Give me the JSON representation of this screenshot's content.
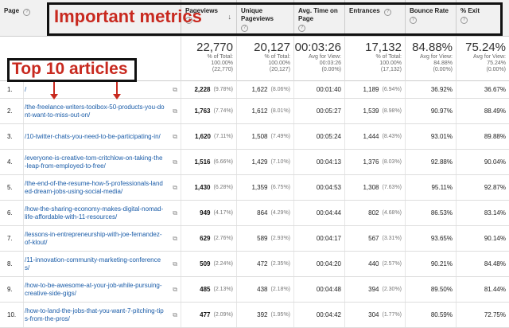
{
  "header": {
    "page_label": "Page",
    "columns": [
      {
        "label": "Pageviews",
        "sortable": true
      },
      {
        "label": "Unique Pageviews"
      },
      {
        "label": "Avg. Time on Page"
      },
      {
        "label": "Entrances"
      },
      {
        "label": "Bounce Rate"
      },
      {
        "label": "% Exit"
      }
    ],
    "help_glyph": "?",
    "sort_glyph": "↓"
  },
  "annotations": {
    "important_metrics": "Important metrics",
    "top_10": "Top 10 articles"
  },
  "totals": [
    {
      "big": "22,770",
      "l1": "% of Total:",
      "l2": "100.00%",
      "l3": "(22,770)"
    },
    {
      "big": "20,127",
      "l1": "% of Total:",
      "l2": "100.00%",
      "l3": "(20,127)"
    },
    {
      "big": "00:03:26",
      "l1": "Avg for View:",
      "l2": "00:03:26",
      "l3": "(0.00%)"
    },
    {
      "big": "17,132",
      "l1": "% of Total:",
      "l2": "100.00%",
      "l3": "(17,132)"
    },
    {
      "big": "84.88%",
      "l1": "Avg for View:",
      "l2": "84.88%",
      "l3": "(0.00%)"
    },
    {
      "big": "75.24%",
      "l1": "Avg for View:",
      "l2": "75.24%",
      "l3": "(0.00%)"
    }
  ],
  "rows": [
    {
      "n": "1.",
      "page": "/",
      "pv": "2,228",
      "pvp": "(9.78%)",
      "upv": "1,622",
      "upvp": "(8.06%)",
      "time": "00:01:40",
      "ent": "1,189",
      "entp": "(6.94%)",
      "br": "36.92%",
      "exit": "36.67%"
    },
    {
      "n": "2.",
      "page": "/the-freelance-writers-toolbox-50-products-you-dont-want-to-miss-out-on/",
      "pv": "1,763",
      "pvp": "(7.74%)",
      "upv": "1,612",
      "upvp": "(8.01%)",
      "time": "00:05:27",
      "ent": "1,539",
      "entp": "(8.98%)",
      "br": "90.97%",
      "exit": "88.49%"
    },
    {
      "n": "3.",
      "page": "/10-twitter-chats-you-need-to-be-participating-in/",
      "pv": "1,620",
      "pvp": "(7.11%)",
      "upv": "1,508",
      "upvp": "(7.49%)",
      "time": "00:05:24",
      "ent": "1,444",
      "entp": "(8.43%)",
      "br": "93.01%",
      "exit": "89.88%"
    },
    {
      "n": "4.",
      "page": "/everyone-is-creative-tom-critchlow-on-taking-the-leap-from-employed-to-free/",
      "pv": "1,516",
      "pvp": "(6.66%)",
      "upv": "1,429",
      "upvp": "(7.10%)",
      "time": "00:04:13",
      "ent": "1,376",
      "entp": "(8.03%)",
      "br": "92.88%",
      "exit": "90.04%"
    },
    {
      "n": "5.",
      "page": "/the-end-of-the-resume-how-5-professionals-landed-dream-jobs-using-social-media/",
      "pv": "1,430",
      "pvp": "(6.28%)",
      "upv": "1,359",
      "upvp": "(6.75%)",
      "time": "00:04:53",
      "ent": "1,308",
      "entp": "(7.63%)",
      "br": "95.11%",
      "exit": "92.87%"
    },
    {
      "n": "6.",
      "page": "/how-the-sharing-economy-makes-digital-nomad-life-affordable-with-11-resources/",
      "pv": "949",
      "pvp": "(4.17%)",
      "upv": "864",
      "upvp": "(4.29%)",
      "time": "00:04:44",
      "ent": "802",
      "entp": "(4.68%)",
      "br": "86.53%",
      "exit": "83.14%"
    },
    {
      "n": "7.",
      "page": "/lessons-in-entrepreneurship-with-joe-fernandez-of-klout/",
      "pv": "629",
      "pvp": "(2.76%)",
      "upv": "589",
      "upvp": "(2.93%)",
      "time": "00:04:17",
      "ent": "567",
      "entp": "(3.31%)",
      "br": "93.65%",
      "exit": "90.14%"
    },
    {
      "n": "8.",
      "page": "/11-innovation-community-marketing-conferences/",
      "pv": "509",
      "pvp": "(2.24%)",
      "upv": "472",
      "upvp": "(2.35%)",
      "time": "00:04:20",
      "ent": "440",
      "entp": "(2.57%)",
      "br": "90.21%",
      "exit": "84.48%"
    },
    {
      "n": "9.",
      "page": "/how-to-be-awesome-at-your-job-while-pursuing-creative-side-gigs/",
      "pv": "485",
      "pvp": "(2.13%)",
      "upv": "438",
      "upvp": "(2.18%)",
      "time": "00:04:48",
      "ent": "394",
      "entp": "(2.30%)",
      "br": "89.50%",
      "exit": "81.44%"
    },
    {
      "n": "10.",
      "page": "/how-to-land-the-jobs-that-you-want-7-pitching-tips-from-the-pros/",
      "pv": "477",
      "pvp": "(2.09%)",
      "upv": "392",
      "upvp": "(1.95%)",
      "time": "00:04:42",
      "ent": "304",
      "entp": "(1.77%)",
      "br": "80.59%",
      "exit": "72.75%"
    }
  ],
  "colors": {
    "accent_red": "#c8291f",
    "link_blue": "#1a5ca8"
  }
}
